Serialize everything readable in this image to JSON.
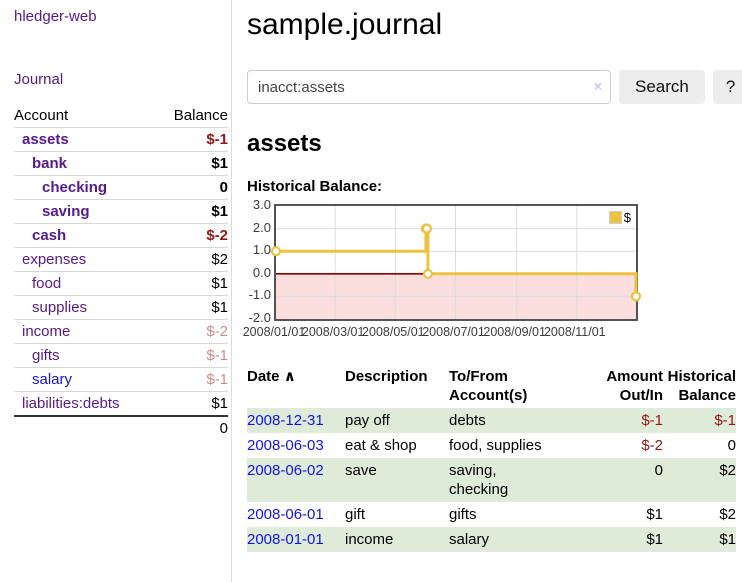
{
  "sidebar": {
    "brand": "hledger-web",
    "nav_journal": "Journal",
    "accounts_table": {
      "headers": [
        "Account",
        "Balance"
      ],
      "rows": [
        {
          "name": "assets",
          "balance": "$-1",
          "indent": 1,
          "matched": true,
          "link_color": "purple",
          "balance_style": "negative"
        },
        {
          "name": "bank",
          "balance": "$1",
          "indent": 2,
          "matched": true,
          "link_color": "purple",
          "balance_style": ""
        },
        {
          "name": "checking",
          "balance": "0",
          "indent": 3,
          "matched": true,
          "link_color": "purple",
          "balance_style": ""
        },
        {
          "name": "saving",
          "balance": "$1",
          "indent": 3,
          "matched": true,
          "link_color": "purple",
          "balance_style": ""
        },
        {
          "name": "cash",
          "balance": "$-2",
          "indent": 2,
          "matched": true,
          "link_color": "purple",
          "balance_style": "negative"
        },
        {
          "name": "expenses",
          "balance": "$2",
          "indent": 1,
          "matched": false,
          "link_color": "purple",
          "balance_style": ""
        },
        {
          "name": "food",
          "balance": "$1",
          "indent": 2,
          "matched": false,
          "link_color": "purple",
          "balance_style": ""
        },
        {
          "name": "supplies",
          "balance": "$1",
          "indent": 2,
          "matched": false,
          "link_color": "purple",
          "balance_style": ""
        },
        {
          "name": "income",
          "balance": "$-2",
          "indent": 1,
          "matched": false,
          "link_color": "purple",
          "balance_style": "dim-negative"
        },
        {
          "name": "gifts",
          "balance": "$-1",
          "indent": 2,
          "matched": false,
          "link_color": "purple",
          "balance_style": "dim-negative"
        },
        {
          "name": "salary",
          "balance": "$-1",
          "indent": 2,
          "matched": false,
          "link_color": "blue",
          "balance_style": "dim-negative"
        },
        {
          "name": "liabilities:debts",
          "balance": "$1",
          "indent": 1,
          "matched": false,
          "link_color": "purple",
          "balance_style": ""
        }
      ],
      "total": "0"
    }
  },
  "header": {
    "title": "sample.journal"
  },
  "search": {
    "value": "inacct:assets",
    "clear_icon": "×",
    "button_label": "Search",
    "help_label": "?"
  },
  "account_page": {
    "heading": "assets",
    "chart_label": "Historical Balance:"
  },
  "chart_data": {
    "type": "line",
    "style": "step-after",
    "title": "Historical Balance:",
    "x_range": [
      "2008-01-01",
      "2008-12-31"
    ],
    "ylim": [
      -2,
      3
    ],
    "y_tick_values": [
      3,
      2,
      1,
      0,
      -1,
      -2
    ],
    "y_tick_labels": [
      "3.0",
      "2.0",
      "1.0",
      "0.0",
      "-1.0",
      "-2.0"
    ],
    "x_ticks": [
      "2008/01/01",
      "2008/03/01",
      "2008/05/01",
      "2008/07/01",
      "2008/09/01",
      "2008/11/01"
    ],
    "series": [
      {
        "name": "$",
        "color": "#edc240",
        "points": [
          [
            "2008-01-01",
            1
          ],
          [
            "2008-06-01",
            2
          ],
          [
            "2008-06-02",
            2
          ],
          [
            "2008-06-03",
            0
          ],
          [
            "2008-12-31",
            -1
          ]
        ]
      }
    ],
    "legend": {
      "position": "top-right",
      "entries": [
        "$"
      ]
    },
    "grid": true,
    "grid_color": "#dcdcdc",
    "below_zero_fill": "#fbdede",
    "zero_line_color": "#8b0000"
  },
  "register": {
    "headers": {
      "date": "Date",
      "sort_asc_icon": "∧",
      "description": "Description",
      "account_line1": "To/From",
      "account_line2": "Account(s)",
      "amount_line1": "Amount",
      "amount_line2": "Out/In",
      "balance_line1": "Historical",
      "balance_line2": "Balance"
    },
    "rows": [
      {
        "date": "2008-12-31",
        "description": "pay off",
        "accounts": "debts",
        "amount": "$-1",
        "amount_negative": true,
        "balance": "$-1",
        "balance_negative": true,
        "striped": true
      },
      {
        "date": "2008-06-03",
        "description": "eat & shop",
        "accounts": "food, supplies",
        "amount": "$-2",
        "amount_negative": true,
        "balance": "0",
        "balance_negative": false,
        "striped": false
      },
      {
        "date": "2008-06-02",
        "description": "save",
        "accounts": "saving,\nchecking",
        "amount": "0",
        "amount_negative": false,
        "balance": "$2",
        "balance_negative": false,
        "striped": true
      },
      {
        "date": "2008-06-01",
        "description": "gift",
        "accounts": "gifts",
        "amount": "$1",
        "amount_negative": false,
        "balance": "$2",
        "balance_negative": false,
        "striped": false
      },
      {
        "date": "2008-01-01",
        "description": "income",
        "accounts": "salary",
        "amount": "$1",
        "amount_negative": false,
        "balance": "$1",
        "balance_negative": false,
        "striped": true
      }
    ]
  },
  "colors": {
    "link_purple": "#551a8b",
    "link_blue": "#1414e0",
    "negative": "#941616",
    "dim_negative": "#cb8d8d",
    "row_stripe_green": "#dfebd9",
    "series_yellow": "#edc240",
    "below_zero_pink": "#fbdede",
    "zero_line": "#8b0000"
  }
}
